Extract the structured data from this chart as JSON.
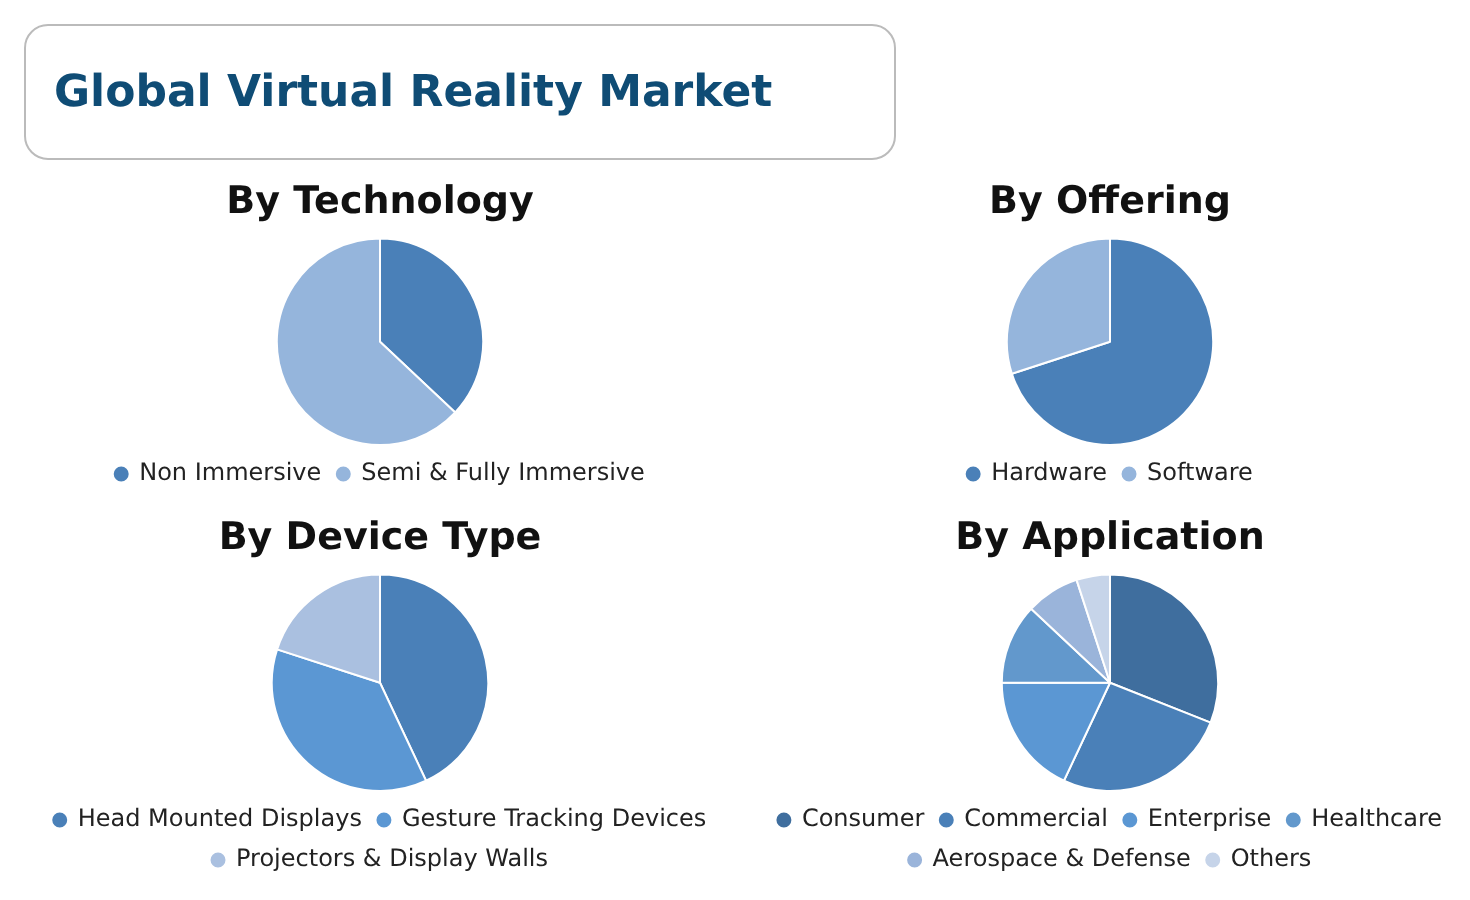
{
  "chart_data": [
    {
      "type": "other",
      "title": "Global Virtual Reality Market"
    },
    {
      "type": "pie",
      "title": "By Technology",
      "legend": "bottom",
      "categories": [
        "Non Immersive",
        "Semi & Fully Immersive"
      ],
      "values": [
        37,
        63
      ],
      "colors": [
        "#4a80b8",
        "#95b5dc"
      ]
    },
    {
      "type": "pie",
      "title": "By Offering",
      "legend": "bottom",
      "categories": [
        "Hardware",
        "Software"
      ],
      "values": [
        70,
        30
      ],
      "colors": [
        "#4a80b8",
        "#95b5dc"
      ]
    },
    {
      "type": "pie",
      "title": "By Device Type",
      "legend": "bottom",
      "categories": [
        "Head Mounted Displays",
        "Gesture Tracking Devices",
        "Projectors & Display Walls"
      ],
      "values": [
        43,
        37,
        20
      ],
      "colors": [
        "#4a80b8",
        "#5b97d3",
        "#aac0e0"
      ]
    },
    {
      "type": "pie",
      "title": "By Application",
      "legend": "bottom",
      "categories": [
        "Consumer",
        "Commercial",
        "Enterprise",
        "Healthcare",
        "Aerospace & Defense",
        "Others"
      ],
      "values": [
        31,
        26,
        18,
        12,
        8,
        5
      ],
      "colors": [
        "#3f6e9e",
        "#4a80b8",
        "#5b97d3",
        "#6298cc",
        "#9ab4da",
        "#c6d4e9"
      ]
    }
  ]
}
